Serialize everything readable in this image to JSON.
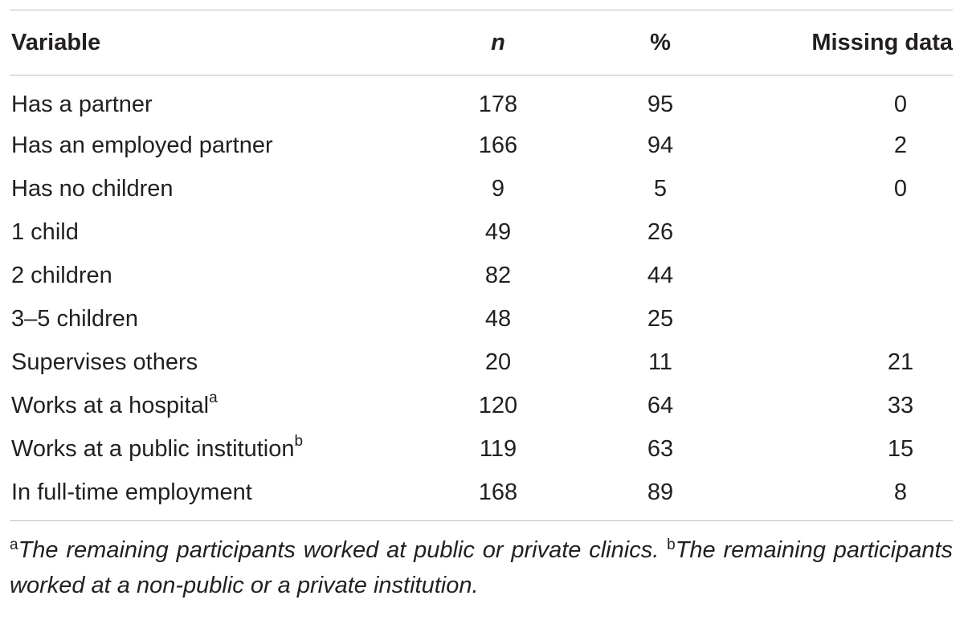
{
  "table": {
    "headers": {
      "variable": "Variable",
      "n": "n",
      "percent": "%",
      "missing": "Missing data"
    },
    "rows": [
      {
        "label": "Has a partner",
        "sup": "",
        "n": "178",
        "percent": "95",
        "missing": "0"
      },
      {
        "label": "Has an employed partner",
        "sup": "",
        "n": "166",
        "percent": "94",
        "missing": "2"
      },
      {
        "label": "Has no children",
        "sup": "",
        "n": "9",
        "percent": "5",
        "missing": "0"
      },
      {
        "label": "1 child",
        "sup": "",
        "n": "49",
        "percent": "26",
        "missing": ""
      },
      {
        "label": "2 children",
        "sup": "",
        "n": "82",
        "percent": "44",
        "missing": ""
      },
      {
        "label": "3–5 children",
        "sup": "",
        "n": "48",
        "percent": "25",
        "missing": ""
      },
      {
        "label": "Supervises others",
        "sup": "",
        "n": "20",
        "percent": "11",
        "missing": "21"
      },
      {
        "label": "Works at a hospital",
        "sup": "a",
        "n": "120",
        "percent": "64",
        "missing": "33"
      },
      {
        "label": "Works at a public institution",
        "sup": "b",
        "n": "119",
        "percent": "63",
        "missing": "15"
      },
      {
        "label": "In full-time employment",
        "sup": "",
        "n": "168",
        "percent": "89",
        "missing": "8"
      }
    ]
  },
  "footnotes": [
    {
      "mark": "a",
      "text": "The remaining participants worked at public or private clinics."
    },
    {
      "mark": "b",
      "text": "The remaining participants worked at a non-public or a private institution."
    }
  ]
}
